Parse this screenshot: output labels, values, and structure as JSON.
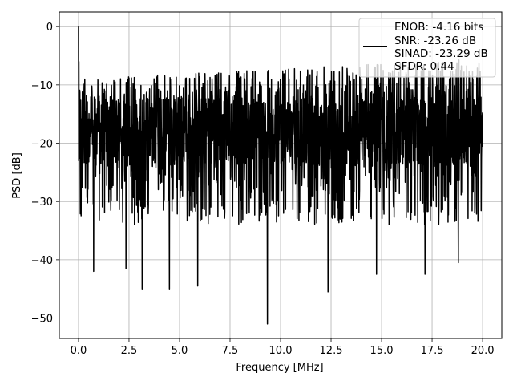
{
  "chart_data": {
    "type": "line",
    "title": "",
    "xlabel": "Frequency [MHz]",
    "ylabel": "PSD [dB]",
    "xlim": [
      -0.95,
      20.95
    ],
    "ylim": [
      -53.5,
      2.5
    ],
    "xticks": [
      0.0,
      2.5,
      5.0,
      7.5,
      10.0,
      12.5,
      15.0,
      17.5,
      20.0
    ],
    "xtick_labels": [
      "0.0",
      "2.5",
      "5.0",
      "7.5",
      "10.0",
      "12.5",
      "15.0",
      "17.5",
      "20.0"
    ],
    "yticks": [
      0,
      -10,
      -20,
      -30,
      -40,
      -50
    ],
    "ytick_labels": [
      "0",
      "−10",
      "−20",
      "−30",
      "−40",
      "−50"
    ],
    "grid": true,
    "legend_position": "top-right",
    "series": [
      {
        "color": "#000000",
        "points_note_free": true,
        "x_range": [
          0.0,
          20.0
        ],
        "y_baseline": -17,
        "notable_points": [
          {
            "x": 0.0,
            "y": 0.0
          },
          {
            "x": 0.75,
            "y": -42.0
          },
          {
            "x": 2.35,
            "y": -41.5
          },
          {
            "x": 3.15,
            "y": -45.0
          },
          {
            "x": 4.5,
            "y": -45.0
          },
          {
            "x": 5.9,
            "y": -44.5
          },
          {
            "x": 9.35,
            "y": -51.0
          },
          {
            "x": 12.35,
            "y": -45.5
          },
          {
            "x": 14.75,
            "y": -42.5
          },
          {
            "x": 17.15,
            "y": -42.5
          },
          {
            "x": 18.8,
            "y": -40.5
          }
        ]
      }
    ],
    "legend": {
      "lines": [
        "ENOB: -4.16 bits",
        "SNR: -23.26 dB",
        "SINAD: -23.29 dB",
        "SFDR: 0.44"
      ]
    }
  }
}
